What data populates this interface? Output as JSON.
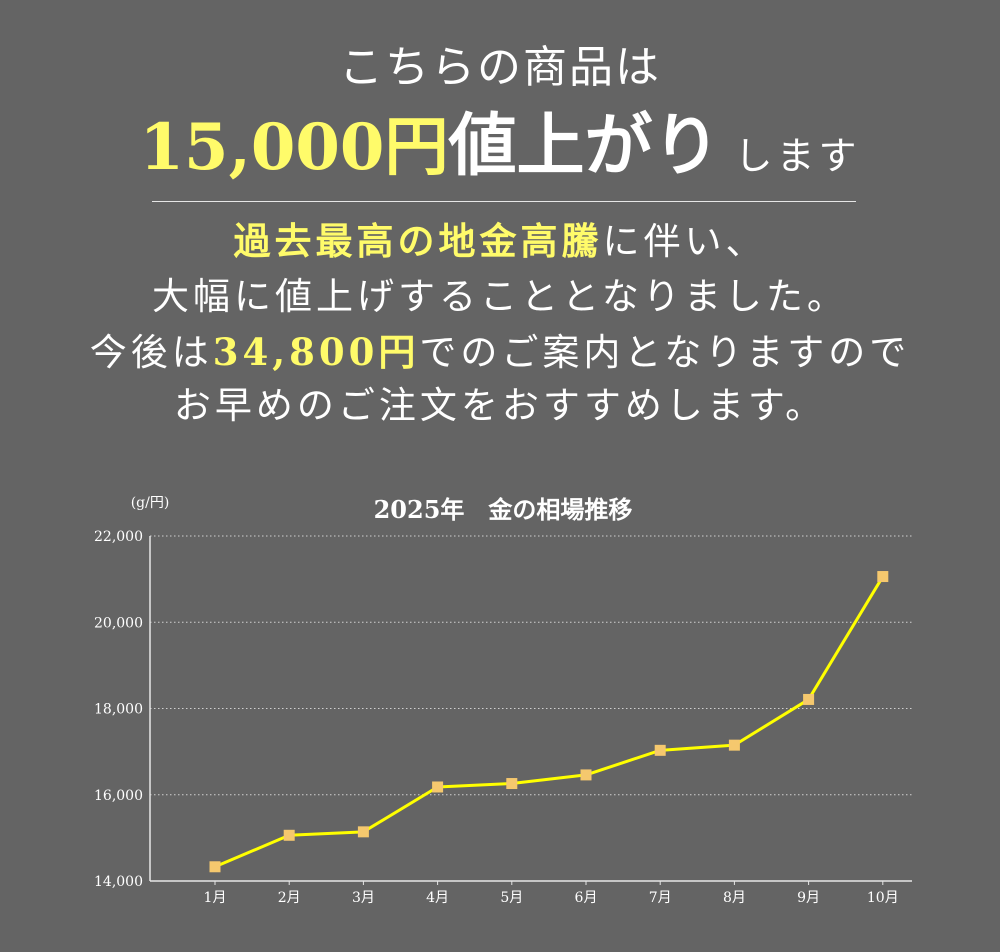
{
  "headline": {
    "line1": "こちらの商品は",
    "price_increase": "15,000円",
    "rise": "値上がり",
    "tail": "します"
  },
  "body": {
    "l1_highlight": "過去最高の地金高騰",
    "l1_rest": "に伴い、",
    "l2": "大幅に値上げすることとなりました。",
    "l3_pre": "今後は",
    "l3_price": "34,800円",
    "l3_post": "でのご案内となりますので",
    "l4": "お早めのご注文をおすすめします。"
  },
  "colors": {
    "background": "#646464",
    "highlight": "#fffb6a",
    "line": "#ffff00",
    "marker": "#f5c86e"
  },
  "chart_data": {
    "type": "line",
    "title": "2025年　金の相場推移",
    "unit_label": "(g/円)",
    "categories": [
      "1月",
      "2月",
      "3月",
      "4月",
      "5月",
      "6月",
      "7月",
      "8月",
      "9月",
      "10月"
    ],
    "series": [
      {
        "values": [
          14330,
          15060,
          15140,
          16180,
          16260,
          16460,
          17030,
          17150,
          18210,
          21060
        ]
      }
    ],
    "y_ticks": [
      "14,000",
      "16,000",
      "18,000",
      "20,000",
      "22,000"
    ],
    "ylim": [
      14000,
      22000
    ],
    "grid": "horizontal dotted",
    "legend": "none"
  }
}
